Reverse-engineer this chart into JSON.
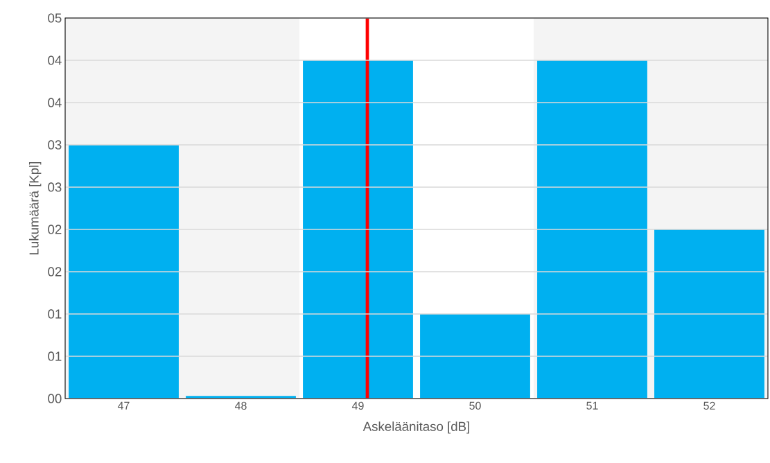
{
  "chart_data": {
    "type": "bar",
    "xlabel": "Askeläänitaso [dB]",
    "ylabel": "Lukumäärä [Kpl]",
    "x": [
      47,
      48,
      49,
      50,
      51,
      52
    ],
    "values": [
      3,
      0.03,
      4,
      1,
      4,
      2
    ],
    "color": "#00b0f0",
    "xlim": [
      46.5,
      52.5
    ],
    "xticks": [
      47,
      48,
      49,
      50,
      51,
      52
    ],
    "ylim": [
      0,
      4.5
    ],
    "yticks": [
      {
        "value": 0,
        "label": "00"
      },
      {
        "value": 0.5,
        "label": "01"
      },
      {
        "value": 1,
        "label": "01"
      },
      {
        "value": 1.5,
        "label": "02"
      },
      {
        "value": 2,
        "label": "02"
      },
      {
        "value": 2.5,
        "label": "03"
      },
      {
        "value": 3,
        "label": "03"
      },
      {
        "value": 3.5,
        "label": "04"
      },
      {
        "value": 4,
        "label": "04"
      },
      {
        "value": 4.5,
        "label": "05"
      }
    ],
    "grid": "y",
    "ref_lines": [
      {
        "axis": "x",
        "value": 49.08,
        "color": "#ff0000"
      }
    ],
    "bands": [
      {
        "axis": "x",
        "from": 46.5,
        "to": 48.5,
        "color": "#f4f4f4"
      },
      {
        "axis": "x",
        "from": 50.5,
        "to": 52.5,
        "color": "#f4f4f4"
      }
    ]
  }
}
